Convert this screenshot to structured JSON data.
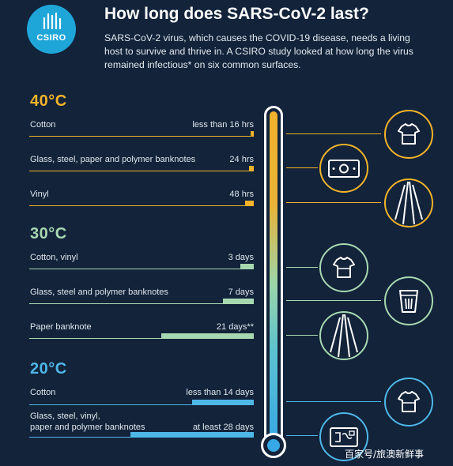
{
  "colors": {
    "background": "#12233a",
    "hot": "#f3b32a",
    "warm": "#a8d8b0",
    "cool": "#4fb7e8",
    "text": "#e8edf2"
  },
  "logo": {
    "text": "CSIRO"
  },
  "title": "How long does SARS-CoV-2 last?",
  "intro": "SARS-CoV-2 virus, which causes the COVID-19 disease, needs a living host to survive and thrive in. A CSIRO study looked at how long the virus remained infectious* on six common surfaces.",
  "sections": [
    {
      "temperature": "40°C",
      "rows": [
        {
          "label": "Cotton",
          "value": "less than 16 hrs",
          "duration_hours": 16
        },
        {
          "label": "Glass, steel, paper and polymer banknotes",
          "value": "24 hrs",
          "duration_hours": 24
        },
        {
          "label": "Vinyl",
          "value": "48 hrs",
          "duration_hours": 48
        }
      ]
    },
    {
      "temperature": "30°C",
      "rows": [
        {
          "label": "Cotton, vinyl",
          "value": "3 days",
          "duration_hours": 72
        },
        {
          "label": "Glass, steel and polymer banknotes",
          "value": "7 days",
          "duration_hours": 168
        },
        {
          "label": "Paper banknote",
          "value": "21 days**",
          "duration_hours": 504
        }
      ]
    },
    {
      "temperature": "20°C",
      "rows": [
        {
          "label": "Cotton",
          "value": "less than 14 days",
          "duration_hours": 336
        },
        {
          "label": "Glass, steel, vinyl,",
          "label2": "paper and polymer banknotes",
          "value": "at least 28 days",
          "duration_hours": 672
        }
      ]
    }
  ],
  "icons": [
    {
      "name": "t-shirt-icon"
    },
    {
      "name": "banknote-icon"
    },
    {
      "name": "vinyl-icon"
    },
    {
      "name": "t-shirt-icon"
    },
    {
      "name": "glass-icon"
    },
    {
      "name": "vinyl-icon"
    },
    {
      "name": "t-shirt-icon"
    },
    {
      "name": "banknote-icon"
    }
  ],
  "watermark": "百家号/旅澳新鲜事"
}
